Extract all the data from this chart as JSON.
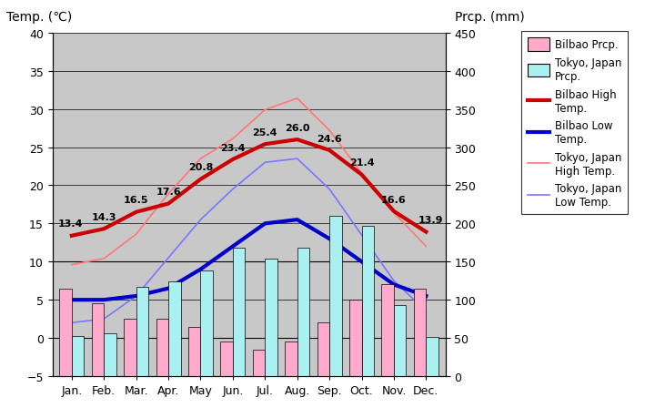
{
  "months": [
    "Jan.",
    "Feb.",
    "Mar.",
    "Apr.",
    "May",
    "Jun.",
    "Jul.",
    "Aug.",
    "Sep.",
    "Oct.",
    "Nov.",
    "Dec."
  ],
  "bilbao_high": [
    13.4,
    14.3,
    16.5,
    17.6,
    20.8,
    23.4,
    25.4,
    26.0,
    24.6,
    21.4,
    16.6,
    13.9
  ],
  "bilbao_low": [
    5.0,
    5.0,
    5.5,
    6.5,
    9.0,
    12.0,
    15.0,
    15.5,
    13.0,
    10.0,
    7.0,
    5.5
  ],
  "bilbao_prcp_mm": [
    115,
    95,
    75,
    75,
    65,
    45,
    35,
    45,
    70,
    100,
    120,
    115
  ],
  "tokyo_high": [
    9.6,
    10.4,
    13.6,
    18.9,
    23.5,
    26.1,
    29.9,
    31.4,
    27.2,
    21.6,
    16.4,
    12.0
  ],
  "tokyo_low": [
    2.0,
    2.5,
    5.5,
    10.5,
    15.5,
    19.5,
    23.0,
    23.5,
    19.5,
    13.5,
    7.5,
    3.5
  ],
  "tokyo_prcp_mm": [
    52,
    56,
    117,
    124,
    138,
    168,
    154,
    168,
    210,
    197,
    93,
    51
  ],
  "title_left": "Temp. (℃)",
  "title_right": "Prcp. (mm)",
  "ylim_left": [
    -5,
    40
  ],
  "ylim_right": [
    0,
    450
  ],
  "plot_bg": "#c8c8c8",
  "bilbao_high_color": "#cc0000",
  "bilbao_low_color": "#0000cc",
  "tokyo_high_color": "#ff7777",
  "tokyo_low_color": "#7777ff",
  "bilbao_prcp_color": "#ffaacc",
  "tokyo_prcp_color": "#aaf0f0",
  "legend_items": [
    {
      "label": "Bilbao Prcp.",
      "type": "bar",
      "color": "#ffaacc"
    },
    {
      "label": "Tokyo, Japan\nPrcp.",
      "type": "bar",
      "color": "#aaf0f0"
    },
    {
      "label": "Bilbao High\nTemp.",
      "type": "line",
      "color": "#cc0000",
      "lw": 3.0
    },
    {
      "label": "Bilbao Low\nTemp.",
      "type": "line",
      "color": "#0000cc",
      "lw": 3.0
    },
    {
      "label": "Tokyo, Japan\nHigh Temp.",
      "type": "line",
      "color": "#ff7777",
      "lw": 1.2
    },
    {
      "label": "Tokyo, Japan\nLow Temp.",
      "type": "line",
      "color": "#7777ff",
      "lw": 1.2
    }
  ]
}
